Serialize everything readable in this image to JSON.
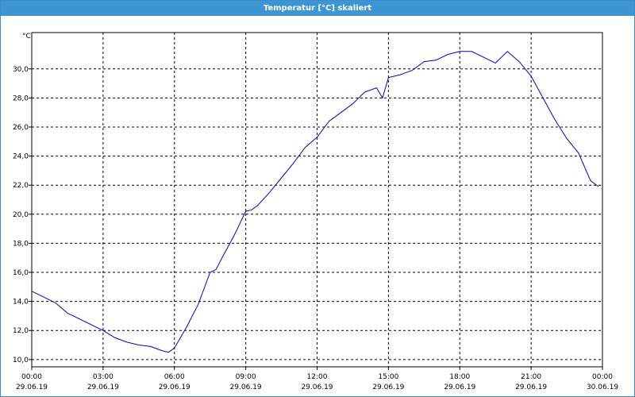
{
  "window": {
    "title": "Temperatur [°C] skaliert"
  },
  "chart_data": {
    "type": "line",
    "unit_label": "°C",
    "ylim": [
      9.5,
      32.5
    ],
    "xlim_hours": [
      0,
      24
    ],
    "grid": true,
    "line_color": "#0000cc",
    "y_ticks": [
      10.0,
      12.0,
      14.0,
      16.0,
      18.0,
      20.0,
      22.0,
      24.0,
      26.0,
      28.0,
      30.0
    ],
    "y_tick_labels": [
      "10,0",
      "12,0",
      "14,0",
      "16,0",
      "18,0",
      "20,0",
      "22,0",
      "24,0",
      "26,0",
      "28,0",
      "30,0"
    ],
    "x_ticks": [
      {
        "time": "00:00",
        "date": "29.06.19"
      },
      {
        "time": "03:00",
        "date": "29.06.19"
      },
      {
        "time": "06:00",
        "date": "29.06.19"
      },
      {
        "time": "09:00",
        "date": "29.06.19"
      },
      {
        "time": "12:00",
        "date": "29.06.19"
      },
      {
        "time": "15:00",
        "date": "29.06.19"
      },
      {
        "time": "18:00",
        "date": "29.06.19"
      },
      {
        "time": "21:00",
        "date": "29.06.19"
      },
      {
        "time": "00:00",
        "date": "30.06.19"
      }
    ],
    "series": [
      {
        "x": [
          "29.06.19 00:00",
          "29.06.19 00:30",
          "29.06.19 01:00",
          "29.06.19 01:30",
          "29.06.19 02:00",
          "29.06.19 02:30",
          "29.06.19 03:00",
          "29.06.19 03:30",
          "29.06.19 04:00",
          "29.06.19 04:30",
          "29.06.19 05:00",
          "29.06.19 05:30",
          "29.06.19 05:45",
          "29.06.19 06:00",
          "29.06.19 06:30",
          "29.06.19 07:00",
          "29.06.19 07:30",
          "29.06.19 07:45",
          "29.06.19 08:00",
          "29.06.19 08:30",
          "29.06.19 09:00",
          "29.06.19 09:15",
          "29.06.19 09:30",
          "29.06.19 10:00",
          "29.06.19 10:30",
          "29.06.19 11:00",
          "29.06.19 11:30",
          "29.06.19 12:00",
          "29.06.19 12:30",
          "29.06.19 13:00",
          "29.06.19 13:30",
          "29.06.19 14:00",
          "29.06.19 14:30",
          "29.06.19 14:45",
          "29.06.19 15:00",
          "29.06.19 15:30",
          "29.06.19 16:00",
          "29.06.19 16:30",
          "29.06.19 17:00",
          "29.06.19 17:30",
          "29.06.19 18:00",
          "29.06.19 18:30",
          "29.06.19 19:00",
          "29.06.19 19:30",
          "29.06.19 20:00",
          "29.06.19 20:30",
          "29.06.19 21:00",
          "29.06.19 21:30",
          "29.06.19 22:00",
          "29.06.19 22:30",
          "29.06.19 23:00",
          "29.06.19 23:30",
          "29.06.19 23:50"
        ],
        "values": [
          14.7,
          14.3,
          13.9,
          13.2,
          12.8,
          12.4,
          12.0,
          11.5,
          11.2,
          11.0,
          10.9,
          10.6,
          10.5,
          10.8,
          12.2,
          13.8,
          16.0,
          16.2,
          17.0,
          18.5,
          20.2,
          20.3,
          20.6,
          21.5,
          22.5,
          23.5,
          24.6,
          25.3,
          26.4,
          27.0,
          27.6,
          28.4,
          28.7,
          28.0,
          29.4,
          29.6,
          29.9,
          30.5,
          30.6,
          31.0,
          31.2,
          31.2,
          30.8,
          30.4,
          31.2,
          30.5,
          29.5,
          28.0,
          26.5,
          25.2,
          24.2,
          22.3,
          21.9
        ]
      }
    ]
  }
}
